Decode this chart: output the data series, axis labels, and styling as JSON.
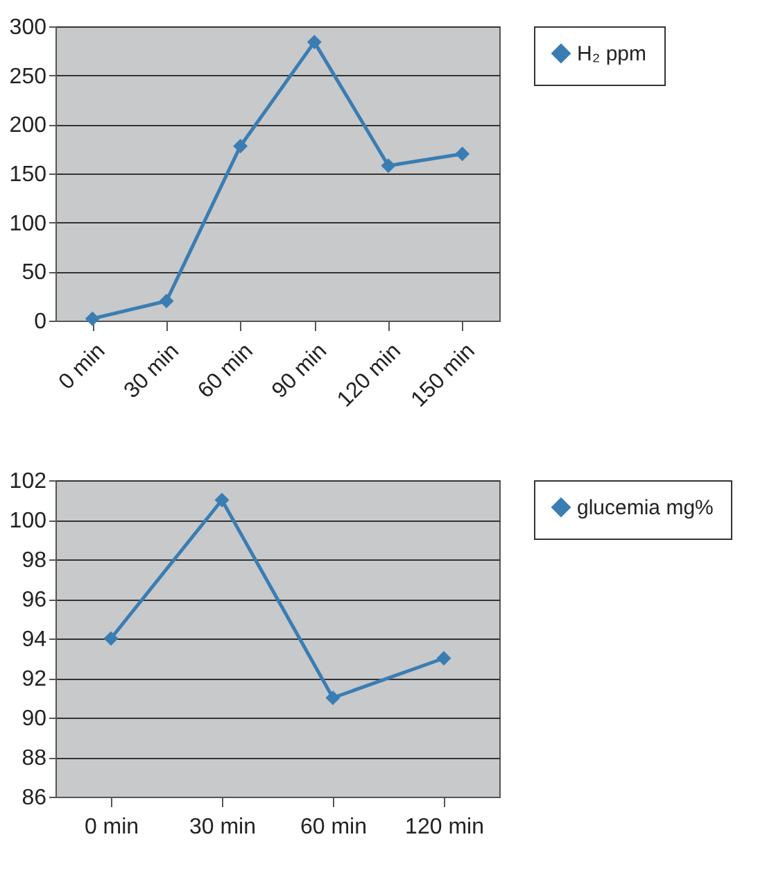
{
  "chart_data": [
    {
      "type": "line",
      "categories": [
        "0 min",
        "30 min",
        "60 min",
        "90 min",
        "120 min",
        "150 min"
      ],
      "series": [
        {
          "name": "H₂ ppm",
          "color": "#3a7db3",
          "values": [
            2,
            20,
            178,
            284,
            158,
            170
          ]
        }
      ],
      "ylim": [
        0,
        300
      ],
      "yticks": [
        0,
        50,
        100,
        150,
        200,
        250,
        300
      ],
      "grid": "y",
      "legend": "right",
      "marker": "diamond",
      "line_style": "solid"
    },
    {
      "type": "line",
      "categories": [
        "0 min",
        "30 min",
        "60 min",
        "120 min"
      ],
      "series": [
        {
          "name": "glucemia mg%",
          "color": "#3a7db3",
          "values": [
            94,
            101,
            91,
            93
          ]
        }
      ],
      "ylim": [
        86,
        102
      ],
      "yticks": [
        86,
        88,
        90,
        92,
        94,
        96,
        98,
        100,
        102
      ],
      "grid": "y",
      "legend": "right",
      "marker": "diamond",
      "line_style": "solid"
    }
  ]
}
